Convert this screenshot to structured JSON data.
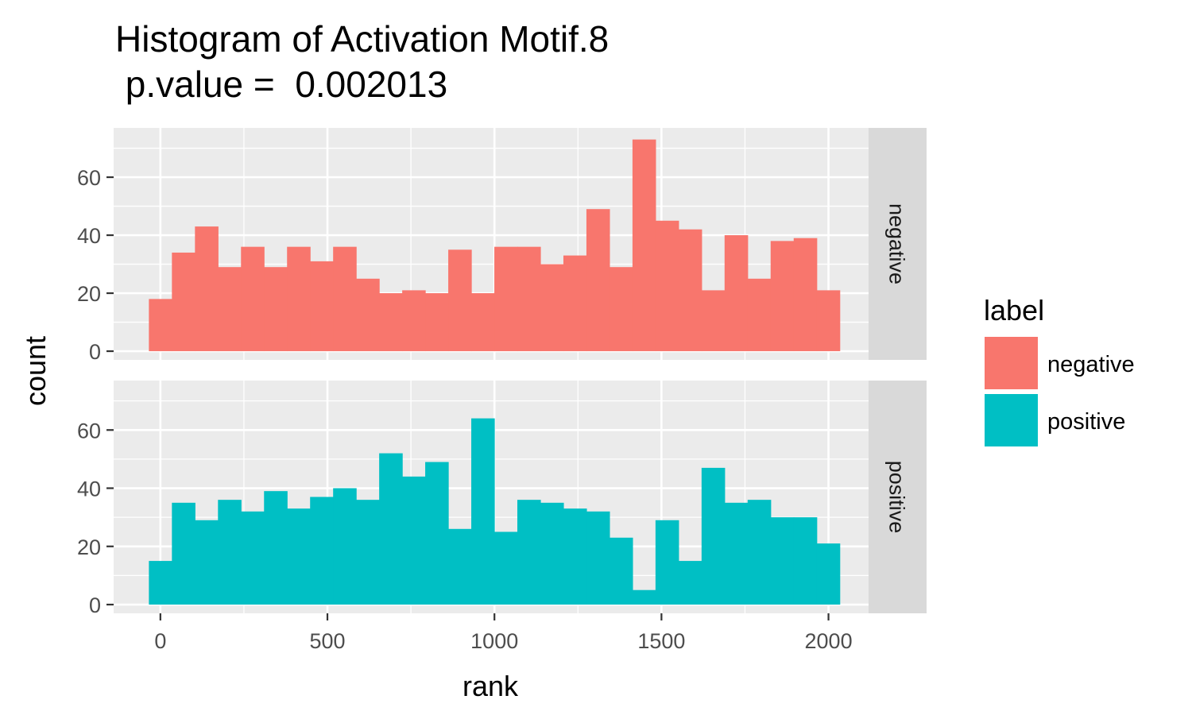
{
  "chart_data": {
    "type": "bar",
    "subtype": "faceted-histogram",
    "title_lines": [
      "Histogram of Activation Motif.8",
      " p.value =  0.002013"
    ],
    "xlabel": "rank",
    "ylabel": "count",
    "xlim": [
      -140,
      2120
    ],
    "ylim": [
      -3,
      77
    ],
    "x_ticks": [
      0,
      500,
      1000,
      1500,
      2000
    ],
    "x_tick_labels": [
      "0",
      "500",
      "1000",
      "1500",
      "2000"
    ],
    "y_ticks": [
      0,
      20,
      40,
      60
    ],
    "y_tick_labels": [
      "0",
      "20",
      "40",
      "60"
    ],
    "bin_centers": [
      0,
      68.9,
      137.9,
      206.8,
      275.7,
      344.7,
      413.6,
      482.6,
      551.5,
      620.4,
      689.4,
      758.3,
      827.2,
      896.2,
      965.1,
      1034.1,
      1103,
      1171.9,
      1240.9,
      1309.8,
      1378.8,
      1447.7,
      1516.6,
      1585.6,
      1654.5,
      1723.4,
      1792.4,
      1861.3,
      1930.3,
      1999.2
    ],
    "bin_width": 68.94,
    "grid": true,
    "legend_title": "label",
    "legend_position": "right",
    "series": [
      {
        "name": "negative",
        "facet_label": "negative",
        "color": "#F8766D",
        "values": [
          18,
          34,
          43,
          29,
          36,
          29,
          36,
          31,
          36,
          25,
          20,
          21,
          20,
          35,
          20,
          36,
          36,
          30,
          33,
          49,
          29,
          73,
          45,
          42,
          21,
          40,
          25,
          38,
          39,
          21
        ]
      },
      {
        "name": "positive",
        "facet_label": "positive",
        "color": "#00BFC4",
        "values": [
          15,
          35,
          29,
          36,
          32,
          39,
          33,
          37,
          40,
          36,
          52,
          44,
          49,
          26,
          64,
          25,
          36,
          35,
          33,
          32,
          23,
          5,
          29,
          15,
          47,
          35,
          36,
          30,
          30,
          21
        ]
      }
    ]
  },
  "colors": {
    "panel_bg": "#EBEBEB",
    "grid": "#FFFFFF",
    "strip_bg": "#D9D9D9",
    "tick": "#333333"
  }
}
